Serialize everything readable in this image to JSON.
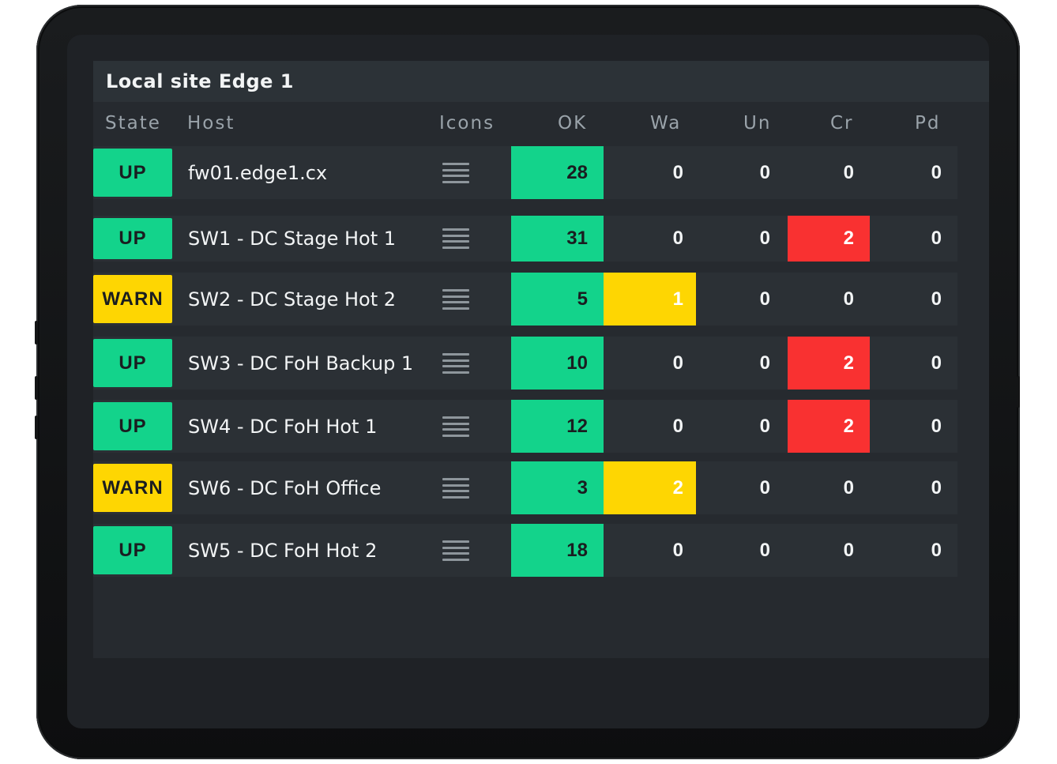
{
  "panel": {
    "title": "Local site Edge 1"
  },
  "columns": {
    "state": "State",
    "host": "Host",
    "icons": "Icons",
    "ok": "OK",
    "wa": "Wa",
    "un": "Un",
    "cr": "Cr",
    "pd": "Pd"
  },
  "colors": {
    "up": "#13d38b",
    "warn": "#fed602",
    "crit": "#f93131",
    "background": "#262a2f"
  },
  "rows": [
    {
      "state": "UP",
      "host": "fw01.edge1.cx",
      "icon": "menu-icon",
      "ok": "28",
      "wa": "0",
      "un": "0",
      "cr": "0",
      "pd": "0"
    },
    {
      "state": "UP",
      "host": "SW1 - DC Stage Hot 1",
      "icon": "menu-icon",
      "ok": "31",
      "wa": "0",
      "un": "0",
      "cr": "2",
      "pd": "0"
    },
    {
      "state": "WARN",
      "host": "SW2 - DC Stage Hot 2",
      "icon": "menu-icon",
      "ok": "5",
      "wa": "1",
      "un": "0",
      "cr": "0",
      "pd": "0"
    },
    {
      "state": "UP",
      "host": "SW3 - DC FoH Backup 1",
      "icon": "menu-icon",
      "ok": "10",
      "wa": "0",
      "un": "0",
      "cr": "2",
      "pd": "0"
    },
    {
      "state": "UP",
      "host": "SW4 - DC FoH Hot 1",
      "icon": "menu-icon",
      "ok": "12",
      "wa": "0",
      "un": "0",
      "cr": "2",
      "pd": "0"
    },
    {
      "state": "WARN",
      "host": "SW6 - DC FoH Office",
      "icon": "menu-icon",
      "ok": "3",
      "wa": "2",
      "un": "0",
      "cr": "0",
      "pd": "0"
    },
    {
      "state": "UP",
      "host": "SW5 - DC FoH Hot 2",
      "icon": "menu-icon",
      "ok": "18",
      "wa": "0",
      "un": "0",
      "cr": "0",
      "pd": "0"
    }
  ]
}
